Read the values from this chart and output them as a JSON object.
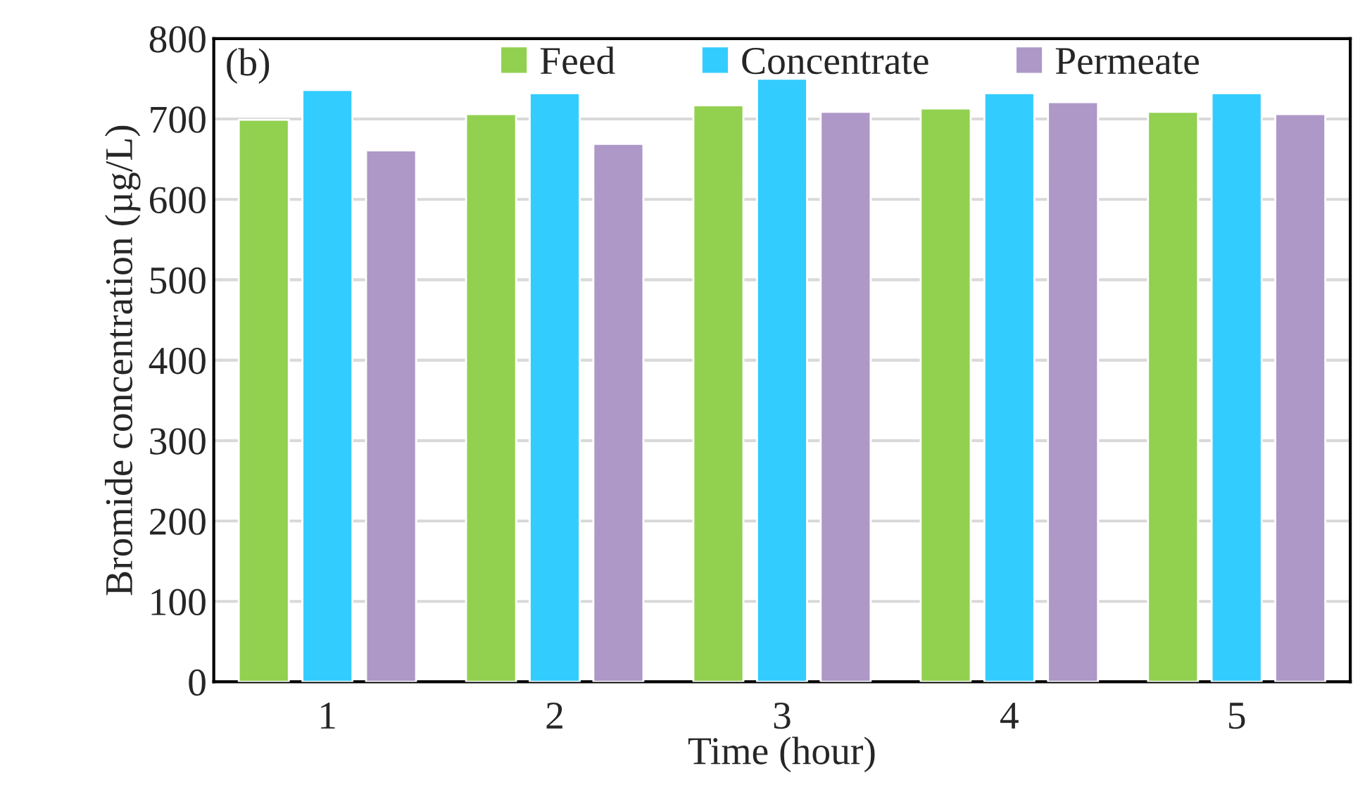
{
  "chart_data": {
    "type": "bar",
    "xlabel": "Time (hour)",
    "ylabel": "Bromide concentration (µg/L)",
    "annotations": [
      "(b)"
    ],
    "categories": [
      "1",
      "2",
      "3",
      "4",
      "5"
    ],
    "series": [
      {
        "name": "Feed",
        "color": "#92d050",
        "values": [
          699,
          706,
          717,
          713,
          709
        ]
      },
      {
        "name": "Concentrate",
        "color": "#33ccff",
        "values": [
          736,
          732,
          750,
          732,
          732
        ]
      },
      {
        "name": "Permeate",
        "color": "#ae98c8",
        "values": [
          661,
          669,
          709,
          721,
          706
        ]
      }
    ],
    "ylim": [
      0,
      800
    ],
    "yticks": [
      0,
      100,
      200,
      300,
      400,
      500,
      600,
      700,
      800
    ],
    "grid": "y",
    "legend": "top"
  }
}
